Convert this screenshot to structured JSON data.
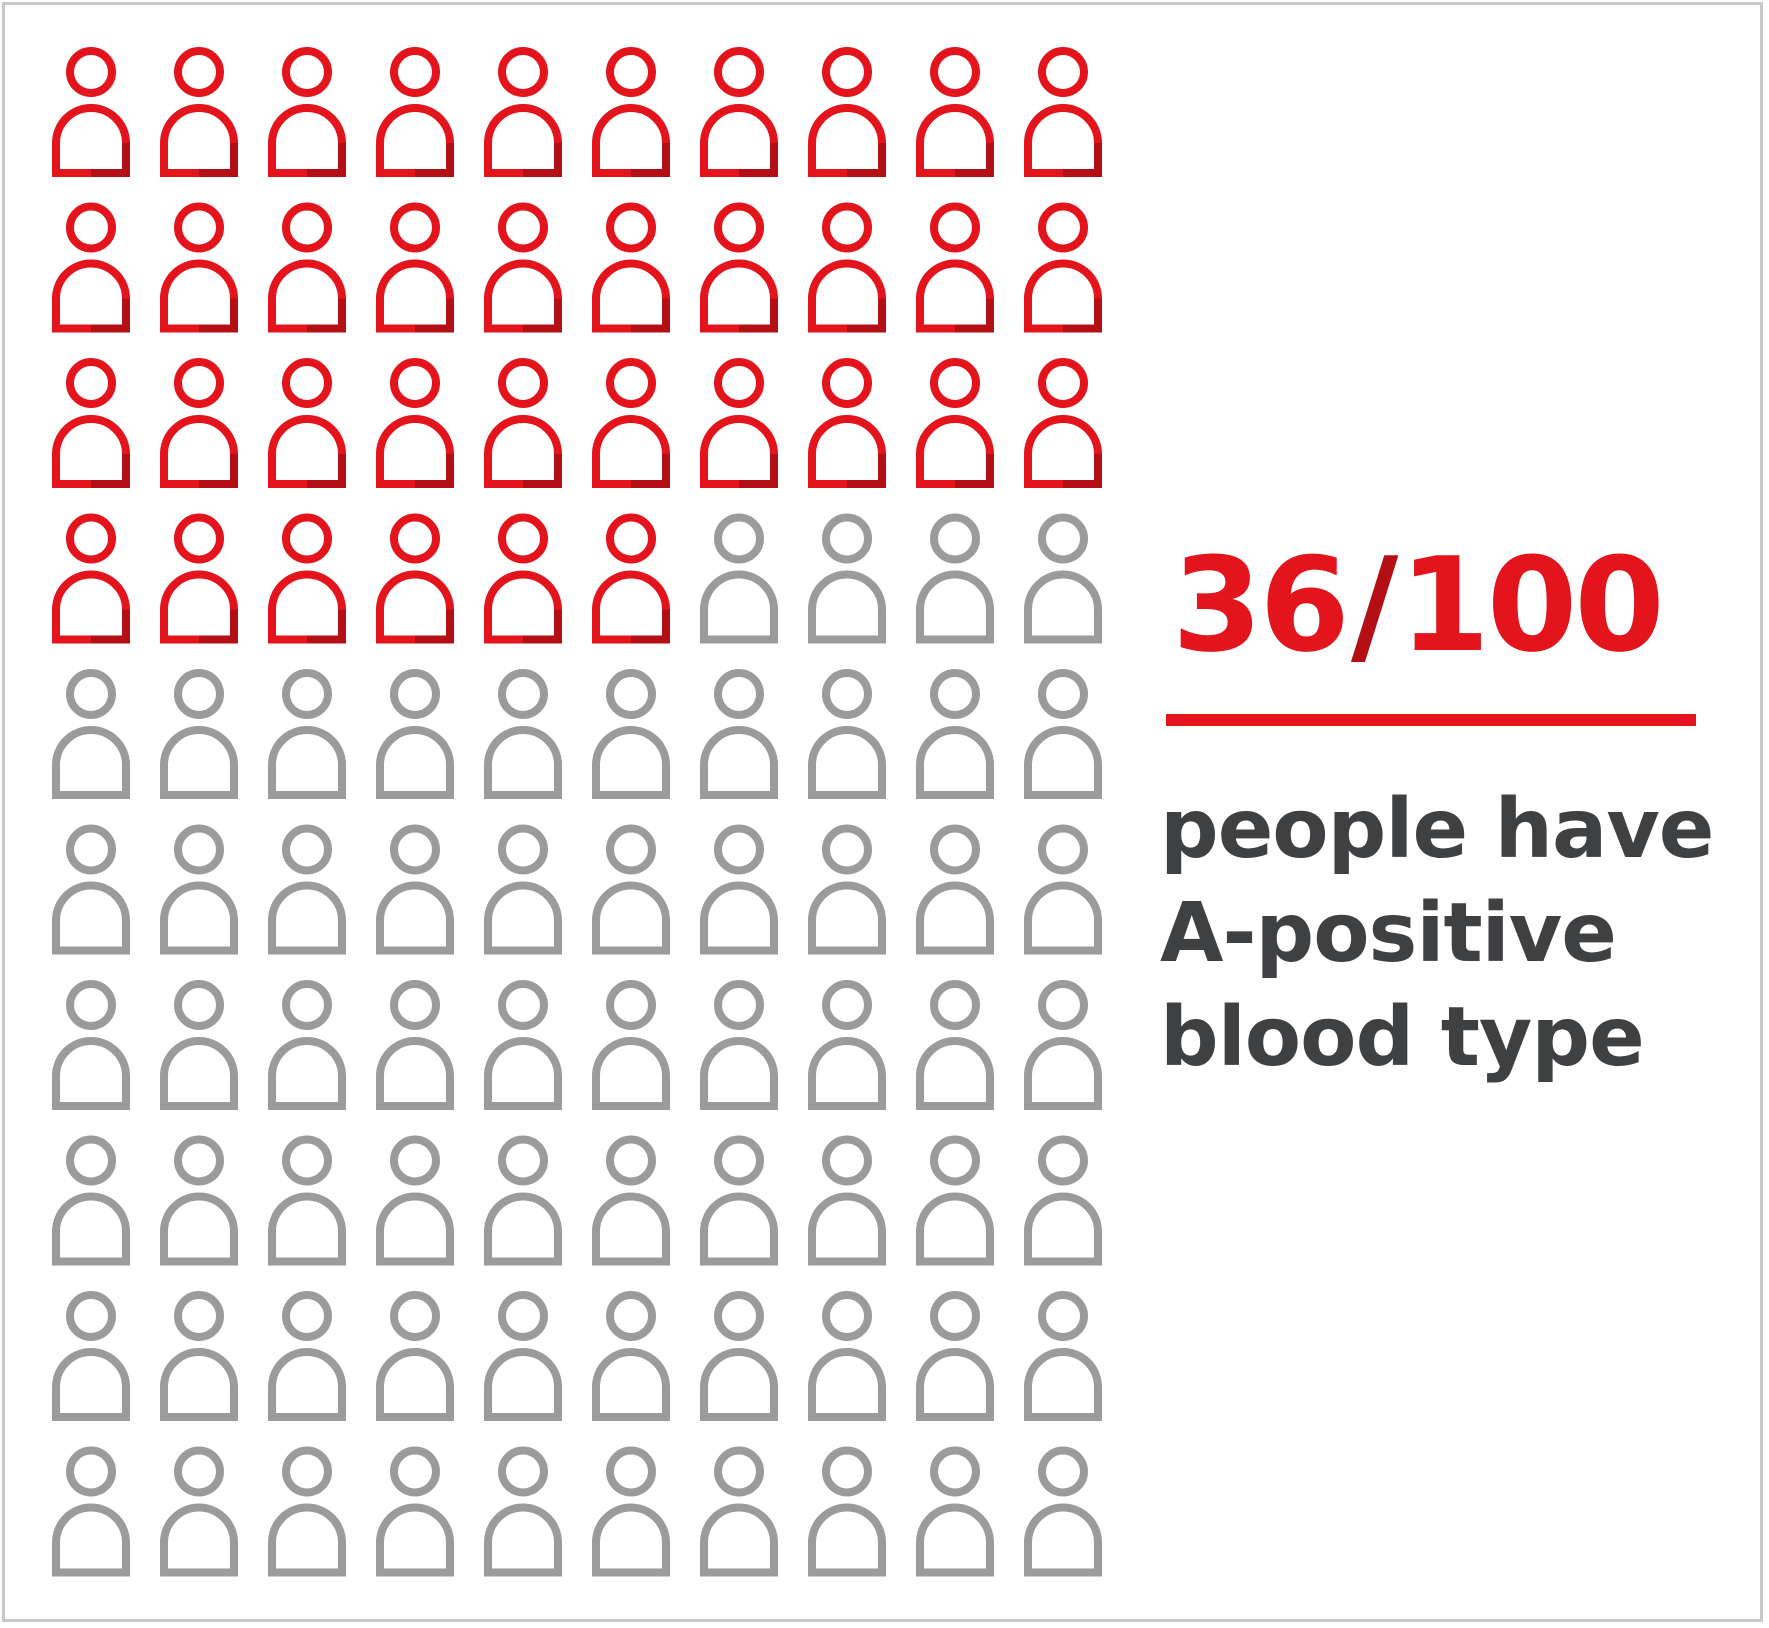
{
  "chart_data": {
    "type": "pictogram",
    "total": 100,
    "highlighted": 36,
    "rows": 10,
    "columns": 10,
    "fill_order": "row-major, top-left first",
    "highlight_color": "#e3141c",
    "highlight_shade": "#b50f16",
    "base_color": "#9b9b9b",
    "icon": "person-icon"
  },
  "stat": {
    "count": "36",
    "separator": "/",
    "total": "100",
    "caption": [
      "people have",
      "A-positive",
      "blood type"
    ]
  },
  "colors": {
    "frame": "#c8c8c8",
    "accent": "#e3141c",
    "text": "#3f4042"
  }
}
